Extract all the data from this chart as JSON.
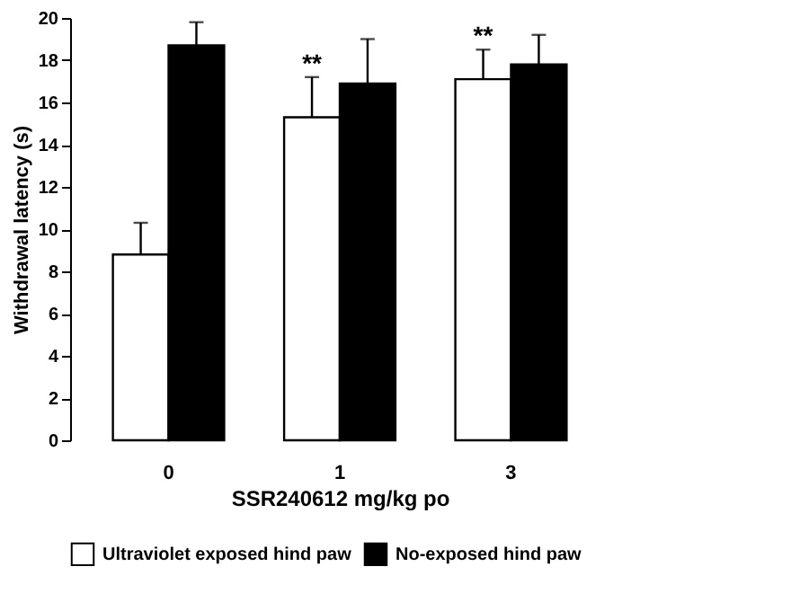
{
  "chart_data": {
    "type": "bar",
    "xlabel": "SSR240612  mg/kg po",
    "ylabel": "Withdrawal latency (s)",
    "categories": [
      "0",
      "1",
      "3"
    ],
    "series": [
      {
        "name": "Ultraviolet exposed hind paw",
        "color": "#ffffff",
        "values": [
          8.8,
          15.3,
          17.1
        ],
        "errors": [
          [
            8.8,
            10.3
          ],
          [
            15.3,
            17.2
          ],
          [
            17.1,
            18.5
          ]
        ]
      },
      {
        "name": "No-exposed hind paw",
        "color": "#000000",
        "values": [
          18.7,
          16.9,
          17.8
        ],
        "errors": [
          [
            18.7,
            19.8
          ],
          [
            16.9,
            19.0
          ],
          [
            17.8,
            19.2
          ]
        ]
      }
    ],
    "ylim": [
      0,
      20
    ],
    "yticks": [
      0,
      2,
      4,
      6,
      8,
      10,
      12,
      14,
      16,
      18,
      20
    ],
    "grid": false,
    "legend": "bottom",
    "annotations": [
      "**",
      "**"
    ]
  }
}
